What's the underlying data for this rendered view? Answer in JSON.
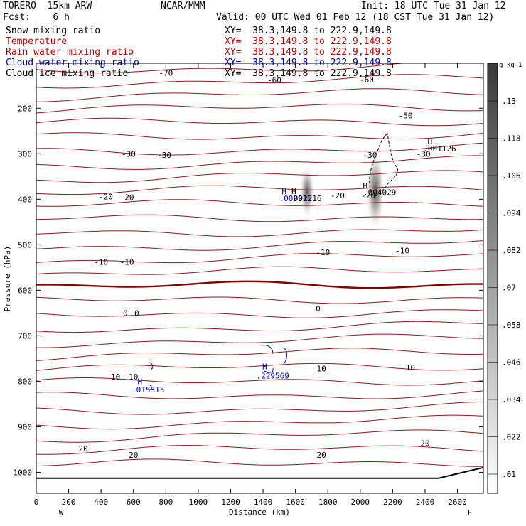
{
  "header": {
    "model": "TORERO  15km ARW",
    "center": "NCAR/MMM",
    "init": "Init: 18 UTC Tue 31 Jan 12",
    "fcst": "Fcst:    6 h",
    "valid": "Valid: 00 UTC Wed 01 Feb 12 (18 CST Tue 31 Jan 12)"
  },
  "fields": [
    {
      "name": "Snow mixing ratio",
      "xy": "XY=  38.3,149.8 to 222.9,149.8",
      "color": "#000000"
    },
    {
      "name": "Temperature",
      "xy": "XY=  38.3,149.8 to 222.9,149.8",
      "color": "#c00000"
    },
    {
      "name": "Rain water mixing ratio",
      "xy": "XY=  38.3,149.8 to 222.9,149.8",
      "color": "#c00000"
    },
    {
      "name": "Cloud water mixing ratio",
      "xy": "XY=  38.3,149.8 to 222.9,149.8",
      "color": "#0000c0"
    },
    {
      "name": "Cloud ice mixing ratio",
      "xy": "XY=  38.3,149.8 to 222.9,149.8",
      "color": "#000000"
    }
  ],
  "chart_data": {
    "type": "cross-section contour",
    "xlabel": "Distance (km)",
    "ylabel": "Pressure (hPa)",
    "xlim": [
      0,
      2760
    ],
    "ylim": [
      1050,
      100
    ],
    "x_ticks": [
      0,
      200,
      400,
      600,
      800,
      1000,
      1200,
      1400,
      1600,
      1800,
      2000,
      2200,
      2400,
      2600
    ],
    "y_ticks": [
      200,
      300,
      400,
      500,
      600,
      700,
      800,
      900,
      1000
    ],
    "x_end_labels": {
      "left": "W",
      "right": "E"
    },
    "colorbar": {
      "unit": "g kg-1",
      "ticks": [
        ".01",
        ".022",
        ".034",
        ".046",
        ".058",
        ".07",
        ".082",
        ".094",
        ".106",
        ".118",
        ".13"
      ]
    },
    "temperature_labels": [
      {
        "text": "-70",
        "x": 800,
        "p": 122
      },
      {
        "text": "-60",
        "x": 1470,
        "p": 138
      },
      {
        "text": "-60",
        "x": 2040,
        "p": 137
      },
      {
        "text": "-50",
        "x": 2280,
        "p": 216
      },
      {
        "text": "-30",
        "x": 570,
        "p": 300
      },
      {
        "text": "-30",
        "x": 790,
        "p": 303
      },
      {
        "text": "-30",
        "x": 2060,
        "p": 303
      },
      {
        "text": "-30",
        "x": 2390,
        "p": 300
      },
      {
        "text": "-20",
        "x": 430,
        "p": 394
      },
      {
        "text": "-20",
        "x": 560,
        "p": 396
      },
      {
        "text": "-20",
        "x": 1860,
        "p": 392
      },
      {
        "text": "-20",
        "x": 2050,
        "p": 392
      },
      {
        "text": "-10",
        "x": 400,
        "p": 538
      },
      {
        "text": "-10",
        "x": 560,
        "p": 538
      },
      {
        "text": "-10",
        "x": 1770,
        "p": 517
      },
      {
        "text": "-10",
        "x": 2260,
        "p": 513
      },
      {
        "text": "0",
        "x": 550,
        "p": 650
      },
      {
        "text": "0",
        "x": 620,
        "p": 650
      },
      {
        "text": "0",
        "x": 1740,
        "p": 640
      },
      {
        "text": "10",
        "x": 490,
        "p": 790
      },
      {
        "text": "10",
        "x": 600,
        "p": 790
      },
      {
        "text": "10",
        "x": 1760,
        "p": 772
      },
      {
        "text": "10",
        "x": 2310,
        "p": 770
      },
      {
        "text": "20",
        "x": 290,
        "p": 948
      },
      {
        "text": "20",
        "x": 600,
        "p": 962
      },
      {
        "text": "20",
        "x": 1760,
        "p": 962
      },
      {
        "text": "20",
        "x": 2400,
        "p": 936
      }
    ],
    "max_labels": [
      {
        "text": "H",
        "x": 1530,
        "p": 382,
        "color": "#0000c0"
      },
      {
        "text": ".009915",
        "x": 1600,
        "p": 398,
        "color": "#0000c0"
      },
      {
        "text": "H",
        "x": 1590,
        "p": 382,
        "color": "#000000"
      },
      {
        "text": ".002216",
        "x": 1660,
        "p": 398,
        "color": "#000000"
      },
      {
        "text": "H",
        "x": 2030,
        "p": 370,
        "color": "#000000"
      },
      {
        "text": ".004029",
        "x": 2120,
        "p": 385,
        "color": "#000000"
      },
      {
        "text": "H",
        "x": 2430,
        "p": 272,
        "color": "#000000"
      },
      {
        "text": ".001126",
        "x": 2490,
        "p": 289,
        "color": "#000000"
      },
      {
        "text": "H",
        "x": 1410,
        "p": 767,
        "color": "#0000c0"
      },
      {
        "text": ".229569",
        "x": 1460,
        "p": 788,
        "color": "#0000c0"
      },
      {
        "text": "H",
        "x": 640,
        "p": 800,
        "color": "#0000c0"
      },
      {
        "text": ".015315",
        "x": 690,
        "p": 818,
        "color": "#0000c0"
      }
    ]
  }
}
